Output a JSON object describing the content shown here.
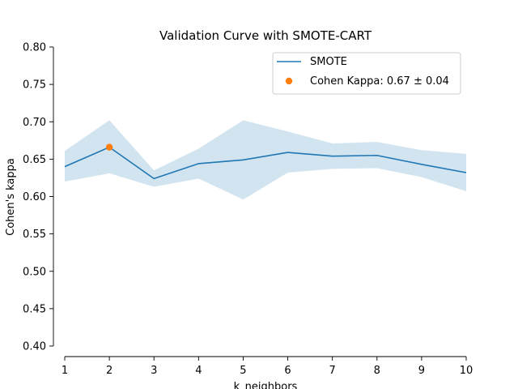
{
  "chart_data": {
    "type": "line",
    "title": "Validation Curve with SMOTE-CART",
    "xlabel": "k_neighbors",
    "ylabel": "Cohen's kappa",
    "xlim": [
      1,
      10
    ],
    "ylim": [
      0.4,
      0.8
    ],
    "x": [
      1,
      2,
      3,
      4,
      5,
      6,
      7,
      8,
      9,
      10
    ],
    "xticks": [
      "1",
      "2",
      "3",
      "4",
      "5",
      "6",
      "7",
      "8",
      "9",
      "10"
    ],
    "yticks": [
      "0.40",
      "0.45",
      "0.50",
      "0.55",
      "0.60",
      "0.65",
      "0.70",
      "0.75",
      "0.80"
    ],
    "series": [
      {
        "name": "SMOTE",
        "color": "#1f77b4",
        "band_color": "#1f77b4",
        "values": [
          0.64,
          0.666,
          0.624,
          0.644,
          0.649,
          0.659,
          0.654,
          0.655,
          0.643,
          0.632
        ],
        "lower": [
          0.62,
          0.631,
          0.613,
          0.624,
          0.596,
          0.632,
          0.637,
          0.638,
          0.626,
          0.607
        ],
        "upper": [
          0.661,
          0.702,
          0.635,
          0.664,
          0.702,
          0.687,
          0.671,
          0.673,
          0.662,
          0.657
        ]
      }
    ],
    "highlight": {
      "label": "Cohen Kappa: 0.67 ± 0.04",
      "x": 2,
      "y": 0.666,
      "color": "#ff7f0e"
    },
    "legend_position": "top-right",
    "grid": false
  }
}
